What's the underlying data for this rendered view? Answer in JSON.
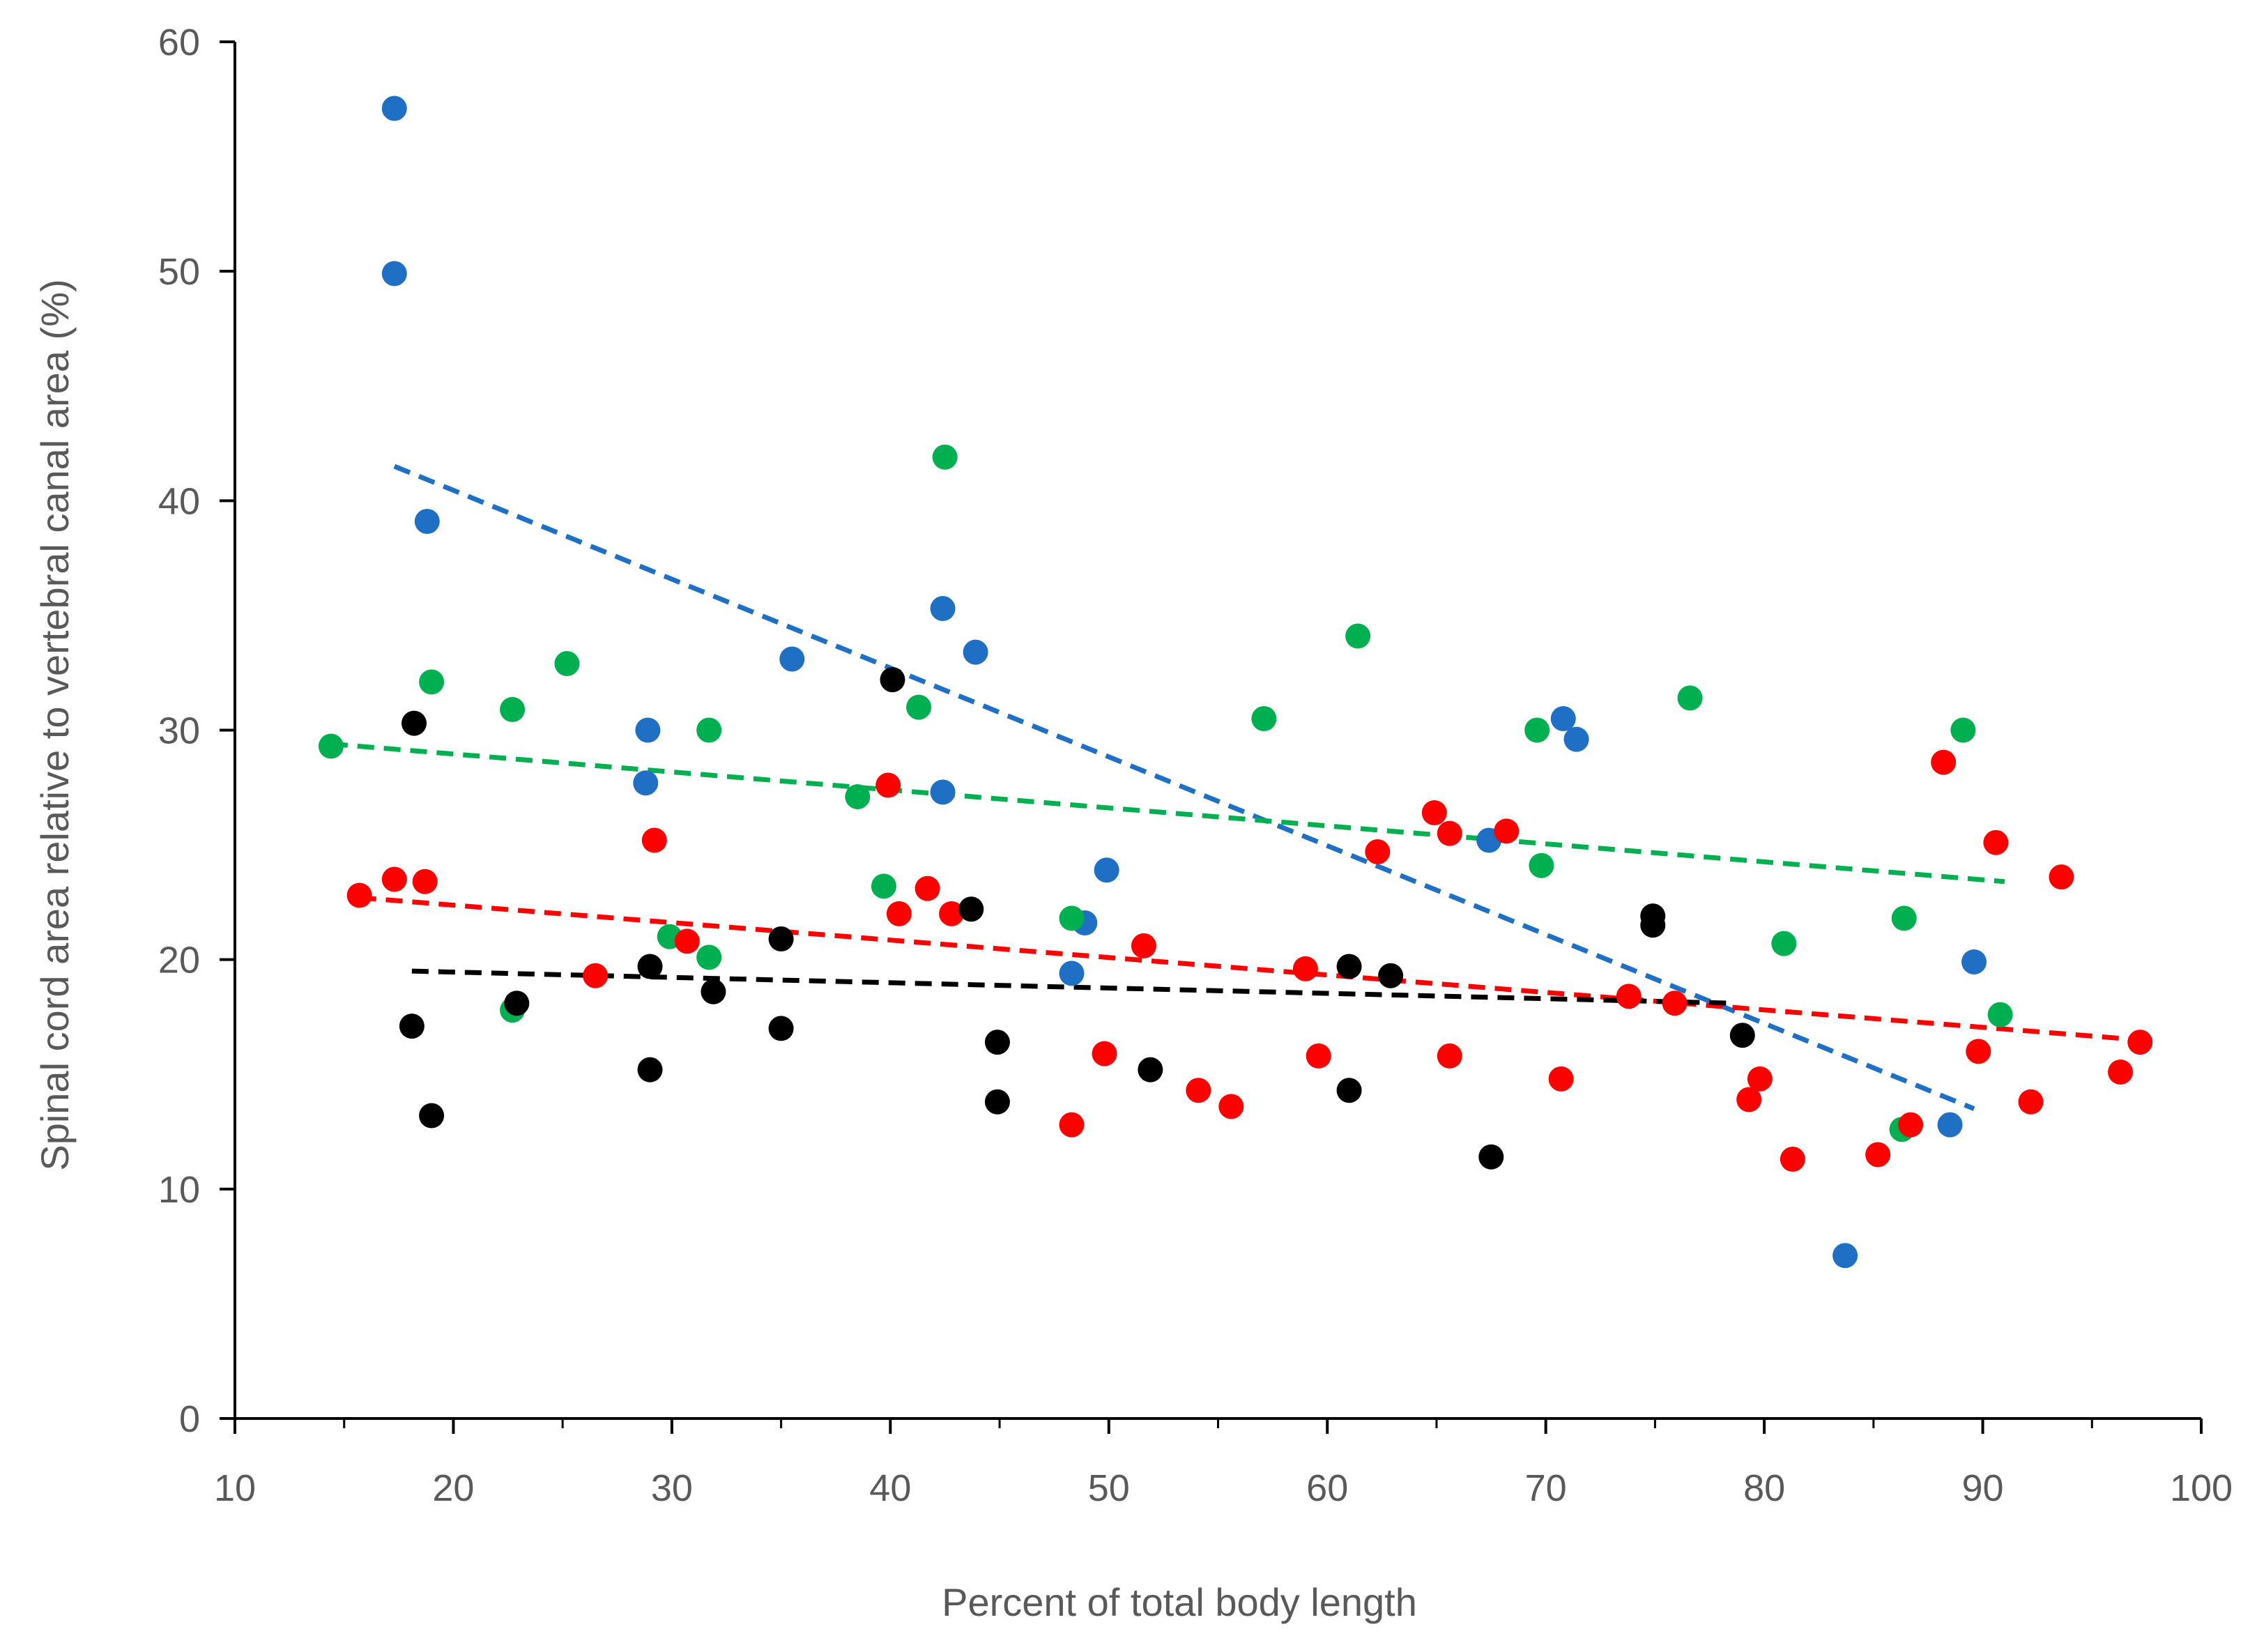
{
  "chart_data": {
    "type": "scatter",
    "title": "",
    "xlabel": "Percent of total body length",
    "ylabel": "Spinal cord area relative to vertebral canal area (%)",
    "xlim": [
      10,
      100
    ],
    "ylim": [
      0,
      60
    ],
    "x_ticks": [
      10,
      20,
      30,
      40,
      50,
      60,
      70,
      80,
      90,
      100
    ],
    "y_ticks": [
      0,
      10,
      20,
      30,
      40,
      50,
      60
    ],
    "grid": false,
    "legend": "none",
    "series": [
      {
        "name": "blue",
        "color": "#1f6fc4",
        "points": [
          [
            17.3,
            57.1
          ],
          [
            17.3,
            49.9
          ],
          [
            18.8,
            39.1
          ],
          [
            28.9,
            30.0
          ],
          [
            28.8,
            27.7
          ],
          [
            35.5,
            33.1
          ],
          [
            42.4,
            35.3
          ],
          [
            42.4,
            27.3
          ],
          [
            43.9,
            33.4
          ],
          [
            48.9,
            21.6
          ],
          [
            49.9,
            23.9
          ],
          [
            48.3,
            19.4
          ],
          [
            67.4,
            25.2
          ],
          [
            70.8,
            30.5
          ],
          [
            71.4,
            29.6
          ],
          [
            83.7,
            7.1
          ],
          [
            88.5,
            12.8
          ],
          [
            89.6,
            19.9
          ]
        ],
        "trendline": [
          [
            17.3,
            41.5
          ],
          [
            89.6,
            13.5
          ]
        ]
      },
      {
        "name": "green",
        "color": "#00b050",
        "points": [
          [
            14.4,
            29.3
          ],
          [
            19.0,
            32.1
          ],
          [
            22.7,
            30.9
          ],
          [
            25.2,
            32.9
          ],
          [
            22.7,
            17.8
          ],
          [
            29.9,
            21.0
          ],
          [
            31.7,
            30.0
          ],
          [
            31.7,
            20.1
          ],
          [
            38.5,
            27.1
          ],
          [
            39.7,
            23.2
          ],
          [
            41.3,
            31.0
          ],
          [
            42.5,
            41.9
          ],
          [
            48.3,
            21.8
          ],
          [
            57.1,
            30.5
          ],
          [
            61.4,
            34.1
          ],
          [
            69.6,
            30.0
          ],
          [
            69.8,
            24.1
          ],
          [
            76.6,
            31.4
          ],
          [
            80.9,
            20.7
          ],
          [
            86.3,
            12.6
          ],
          [
            86.4,
            21.8
          ],
          [
            89.1,
            30.0
          ],
          [
            90.8,
            17.6
          ]
        ],
        "trendline": [
          [
            14.4,
            29.4
          ],
          [
            91.0,
            23.4
          ]
        ]
      },
      {
        "name": "red",
        "color": "#ff0000",
        "points": [
          [
            15.7,
            22.8
          ],
          [
            17.3,
            23.5
          ],
          [
            18.7,
            23.4
          ],
          [
            26.5,
            19.3
          ],
          [
            29.2,
            25.2
          ],
          [
            30.7,
            20.8
          ],
          [
            39.9,
            27.6
          ],
          [
            40.4,
            22.0
          ],
          [
            41.7,
            23.1
          ],
          [
            42.8,
            22.0
          ],
          [
            48.3,
            12.8
          ],
          [
            49.8,
            15.9
          ],
          [
            51.6,
            20.6
          ],
          [
            54.1,
            14.3
          ],
          [
            55.6,
            13.6
          ],
          [
            59.0,
            19.6
          ],
          [
            59.6,
            15.8
          ],
          [
            62.3,
            24.7
          ],
          [
            64.9,
            26.4
          ],
          [
            65.6,
            15.8
          ],
          [
            65.6,
            25.5
          ],
          [
            68.2,
            25.6
          ],
          [
            70.7,
            14.8
          ],
          [
            73.8,
            18.4
          ],
          [
            75.9,
            18.1
          ],
          [
            79.3,
            13.9
          ],
          [
            79.8,
            14.8
          ],
          [
            81.3,
            11.3
          ],
          [
            85.2,
            11.5
          ],
          [
            86.7,
            12.8
          ],
          [
            88.2,
            28.6
          ],
          [
            89.8,
            16.0
          ],
          [
            90.6,
            25.1
          ],
          [
            92.2,
            13.8
          ],
          [
            93.6,
            23.6
          ],
          [
            96.3,
            15.1
          ],
          [
            97.2,
            16.4
          ]
        ],
        "trendline": [
          [
            15.7,
            22.7
          ],
          [
            97.2,
            16.5
          ]
        ]
      },
      {
        "name": "black",
        "color": "#000000",
        "points": [
          [
            18.2,
            30.3
          ],
          [
            18.1,
            17.1
          ],
          [
            19.0,
            13.2
          ],
          [
            22.9,
            18.1
          ],
          [
            29.0,
            19.7
          ],
          [
            29.0,
            15.2
          ],
          [
            31.9,
            18.6
          ],
          [
            35.0,
            20.9
          ],
          [
            35.0,
            17.0
          ],
          [
            40.1,
            32.2
          ],
          [
            43.7,
            22.2
          ],
          [
            44.9,
            16.4
          ],
          [
            44.9,
            13.8
          ],
          [
            51.9,
            15.2
          ],
          [
            61.0,
            19.7
          ],
          [
            61.0,
            14.3
          ],
          [
            62.9,
            19.3
          ],
          [
            67.5,
            11.4
          ],
          [
            74.9,
            21.9
          ],
          [
            74.9,
            21.5
          ],
          [
            79.0,
            16.7
          ]
        ],
        "trendline": [
          [
            18.1,
            19.5
          ],
          [
            78.5,
            18.1
          ]
        ]
      }
    ]
  }
}
